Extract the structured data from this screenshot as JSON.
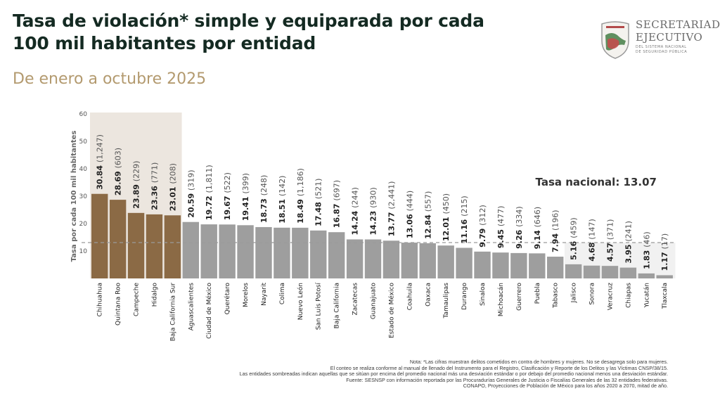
{
  "header": {
    "title_line1": "Tasa de violación* simple y equiparada por cada",
    "title_line2": "100 mil habitantes por entidad",
    "subtitle": "De enero a octubre 2025"
  },
  "logo": {
    "line1": "SECRETARIADO",
    "line2": "EJECUTIVO",
    "line3": "DEL SISTEMA NACIONAL",
    "line4": "DE SEGURIDAD PÚBLICA"
  },
  "colors": {
    "highlight_bar": "#8b6a45",
    "normal_bar": "#9e9e9e",
    "top_shade": "#ece6df",
    "bottom_shade": "#f1f1f1",
    "reference_line": "#9a9a9a"
  },
  "chart_data": {
    "type": "bar",
    "title": "Tasa de violación* simple y equiparada por cada 100 mil habitantes por entidad",
    "subtitle": "De enero a octubre 2025",
    "xlabel": "",
    "ylabel": "Tasa por cada 100 mil habitantes",
    "ylim": [
      0,
      60
    ],
    "yticks": [
      10,
      20,
      30,
      40,
      50,
      60
    ],
    "grid": false,
    "reference_line": {
      "label": "Tasa nacional: 13.07",
      "value": 13.07
    },
    "categories": [
      "Chihuahua",
      "Quintana Roo",
      "Campeche",
      "Hidalgo",
      "Baja California Sur",
      "Aguascalientes",
      "Ciudad de México",
      "Querétaro",
      "Morelos",
      "Nayarit",
      "Colima",
      "Nuevo León",
      "San Luis Potosí",
      "Baja California",
      "Zacatecas",
      "Guanajuato",
      "Estado de México",
      "Coahuila",
      "Oaxaca",
      "Tamaulipas",
      "Durango",
      "Sinaloa",
      "Michoacán",
      "Guerrero",
      "Puebla",
      "Tabasco",
      "Jalisco",
      "Sonora",
      "Veracruz",
      "Chiapas",
      "Yucatán",
      "Tlaxcala"
    ],
    "values": [
      30.84,
      28.69,
      23.89,
      23.36,
      23.01,
      20.59,
      19.72,
      19.67,
      19.41,
      18.73,
      18.51,
      18.49,
      17.48,
      16.87,
      14.24,
      14.23,
      13.77,
      13.06,
      12.84,
      12.01,
      11.16,
      9.79,
      9.45,
      9.26,
      9.14,
      7.94,
      5.16,
      4.68,
      4.57,
      3.95,
      1.83,
      1.17
    ],
    "counts": [
      "(1,247)",
      "(603)",
      "(229)",
      "(771)",
      "(208)",
      "(319)",
      "(1,811)",
      "(522)",
      "(399)",
      "(248)",
      "(142)",
      "(1,186)",
      "(521)",
      "(697)",
      "(244)",
      "(930)",
      "(2,441)",
      "(444)",
      "(557)",
      "(450)",
      "(215)",
      "(312)",
      "(477)",
      "(334)",
      "(646)",
      "(196)",
      "(459)",
      "(147)",
      "(371)",
      "(241)",
      "(46)",
      "(17)"
    ],
    "value_labels": [
      "30.84",
      "28.69",
      "23.89",
      "23.36",
      "23.01",
      "20.59",
      "19.72",
      "19.67",
      "19.41",
      "18.73",
      "18.51",
      "18.49",
      "17.48",
      "16.87",
      "14.24",
      "14.23",
      "13.77",
      "13.06",
      "12.84",
      "12.01",
      "11.16",
      "9.79",
      "9.45",
      "9.26",
      "9.14",
      "7.94",
      "5.16",
      "4.68",
      "4.57",
      "3.95",
      "1.83",
      "1.17"
    ],
    "highlighted_top_count": 5,
    "shaded_bottom_count": 6
  },
  "notes": [
    "Nota: *Las cifras muestran delitos cometidos en contra de hombres y mujeres. No se desagrega solo para mujeres.",
    "El conteo se realiza conforme al manual de llenado del Instrumento para el Registro, Clasificación y Reporte de los Delitos y las Víctimas CNSP/38/15.",
    "Las entidades sombreadas indican aquellas que se sitúan por encima del promedio nacional más una desviación estándar o por debajo del promedio nacional menos una desviación estándar.",
    "Fuente: SESNSP con información reportada por las Procuradurías Generales de Justicia o Fiscalías Generales de las 32 entidades federativas.",
    "CONAPO, Proyecciones de Población de México para los años 2020 a 2070, mitad de año."
  ]
}
